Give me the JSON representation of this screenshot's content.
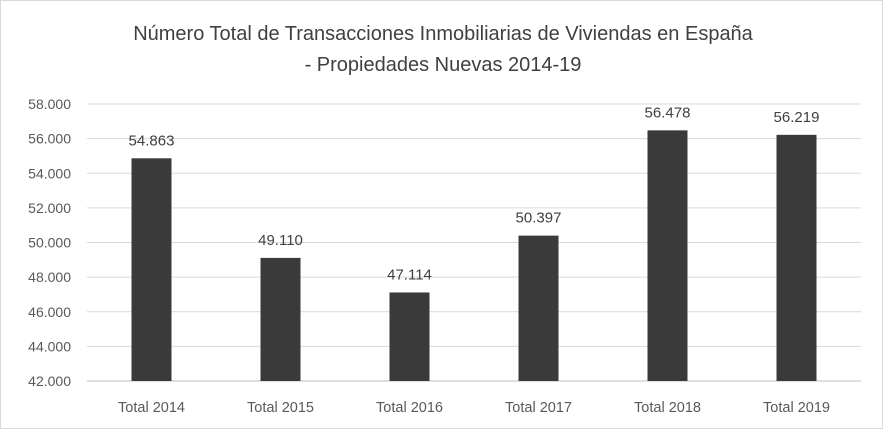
{
  "chart_data": {
    "type": "bar",
    "title_line1": "Número Total de Transacciones Inmobiliarias de Viviendas en España",
    "title_line2": "- Propiedades Nuevas 2014-19",
    "categories": [
      "Total 2014",
      "Total 2015",
      "Total 2016",
      "Total 2017",
      "Total 2018",
      "Total 2019"
    ],
    "values": [
      54863,
      49110,
      47114,
      50397,
      56478,
      56219
    ],
    "value_labels": [
      "54.863",
      "49.110",
      "47.114",
      "50.397",
      "56.478",
      "56.219"
    ],
    "ylim": [
      42000,
      58000
    ],
    "yticks": [
      42000,
      44000,
      46000,
      48000,
      50000,
      52000,
      54000,
      56000,
      58000
    ],
    "ytick_labels": [
      "42.000",
      "44.000",
      "46.000",
      "48.000",
      "50.000",
      "52.000",
      "54.000",
      "56.000",
      "58.000"
    ],
    "grid": true,
    "colors": {
      "bar": "#3a3a3a",
      "grid": "#d9d9d9",
      "text": "#595959",
      "title": "#404040"
    }
  }
}
